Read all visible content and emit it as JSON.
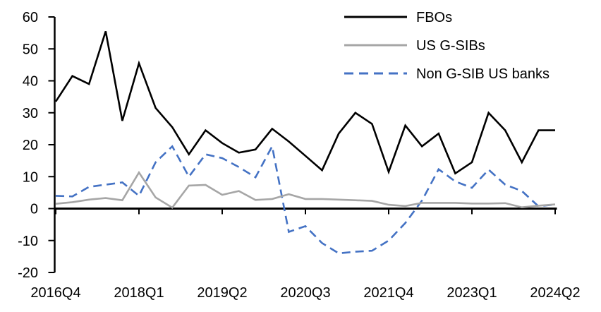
{
  "chart_data": {
    "type": "line",
    "title": "",
    "xlabel": "",
    "ylabel": "",
    "ylim": [
      -20,
      60
    ],
    "grid": "off",
    "legend_position": "top-right",
    "background_color": "#ffffff",
    "axis_color": "#000000",
    "x": [
      "2016Q4",
      "2017Q1",
      "2017Q2",
      "2017Q3",
      "2017Q4",
      "2018Q1",
      "2018Q2",
      "2018Q3",
      "2018Q4",
      "2019Q1",
      "2019Q2",
      "2019Q3",
      "2019Q4",
      "2020Q1",
      "2020Q2",
      "2020Q3",
      "2020Q4",
      "2021Q1",
      "2021Q2",
      "2021Q3",
      "2021Q4",
      "2022Q1",
      "2022Q2",
      "2022Q3",
      "2022Q4",
      "2023Q1",
      "2023Q2",
      "2023Q3",
      "2023Q4",
      "2024Q1",
      "2024Q2"
    ],
    "x_tick_labels": [
      "2016Q4",
      "2018Q1",
      "2019Q2",
      "2020Q3",
      "2021Q4",
      "2023Q1",
      "2024Q2"
    ],
    "x_tick_indices": [
      0,
      5,
      10,
      15,
      20,
      25,
      30
    ],
    "y_ticks": [
      60,
      50,
      40,
      30,
      20,
      10,
      0,
      -10,
      -20
    ],
    "series": [
      {
        "name": "FBOs",
        "color": "#000000",
        "style": "solid",
        "values": [
          33.5,
          41.5,
          39,
          55.5,
          27.5,
          45.5,
          31.5,
          25.5,
          17,
          24.5,
          20.5,
          17.5,
          18.5,
          25,
          21,
          16.5,
          12,
          23.5,
          30,
          26.5,
          11.5,
          26,
          19.5,
          23.5,
          11,
          14.5,
          30,
          24.5,
          14.5,
          24.5,
          24.5
        ]
      },
      {
        "name": "US G-SIBs",
        "color": "#a6a6a6",
        "style": "solid",
        "values": [
          1.5,
          2,
          2.8,
          3.3,
          2.6,
          11.3,
          3.5,
          0.3,
          7.2,
          7.4,
          4.3,
          5.5,
          2.7,
          3,
          4.5,
          3,
          3,
          2.8,
          2.6,
          2.4,
          1.2,
          0.8,
          1.8,
          1.8,
          1.8,
          1.6,
          1.6,
          1.7,
          0.4,
          0.9,
          1.3
        ]
      },
      {
        "name": "Non G-SIB US banks",
        "color": "#4472c4",
        "style": "dashed",
        "values": [
          4,
          3.8,
          6.8,
          7.5,
          8.2,
          4,
          14.5,
          19.5,
          10,
          17,
          15.8,
          13,
          9.8,
          19.5,
          -7.3,
          -5.5,
          -10.8,
          -14,
          -13.5,
          -13.2,
          -10,
          -4.5,
          2.5,
          12.3,
          8.5,
          6.5,
          12.2,
          7.5,
          5.5,
          0.7,
          1.3
        ]
      }
    ]
  }
}
